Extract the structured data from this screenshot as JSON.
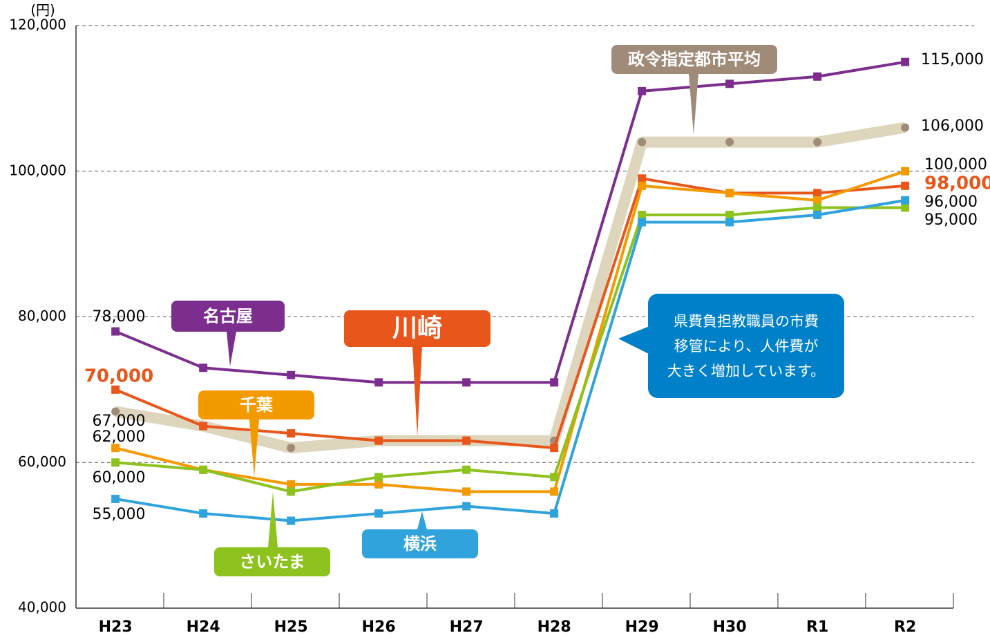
{
  "chart_data": {
    "type": "line",
    "unit_label": "(円)",
    "categories": [
      "H23",
      "H24",
      "H25",
      "H26",
      "H27",
      "H28",
      "H29",
      "H30",
      "R1",
      "R2"
    ],
    "ylim": [
      40000,
      120000
    ],
    "yticks": [
      {
        "value": 40000,
        "label": "40,000"
      },
      {
        "value": 60000,
        "label": "60,000"
      },
      {
        "value": 80000,
        "label": "80,000"
      },
      {
        "value": 100000,
        "label": "100,000"
      },
      {
        "value": 120000,
        "label": "120,000"
      }
    ],
    "grid": true,
    "series": [
      {
        "name": "政令指定都市平均",
        "color": "#ddd5bc",
        "values": [
          67000,
          65000,
          62000,
          63000,
          63000,
          63000,
          104000,
          104000,
          104000,
          106000
        ],
        "value_labels": [
          "67,000",
          null,
          null,
          null,
          null,
          null,
          null,
          null,
          null,
          "106,000"
        ]
      },
      {
        "name": "名古屋",
        "color": "#7b2e8e",
        "values": [
          78000,
          73000,
          72000,
          71000,
          71000,
          71000,
          111000,
          112000,
          113000,
          115000
        ],
        "value_labels": [
          "78,000",
          null,
          null,
          null,
          null,
          null,
          null,
          null,
          null,
          "115,000"
        ]
      },
      {
        "name": "川崎",
        "color": "#e8561b",
        "values": [
          70000,
          65000,
          64000,
          63000,
          63000,
          62000,
          99000,
          97000,
          97000,
          98000
        ],
        "value_labels": [
          "70,000",
          null,
          null,
          null,
          null,
          null,
          null,
          null,
          null,
          "98,000"
        ]
      },
      {
        "name": "千葉",
        "color": "#f39a00",
        "values": [
          62000,
          59000,
          57000,
          57000,
          56000,
          56000,
          98000,
          97000,
          96000,
          100000
        ],
        "value_labels": [
          "62,000",
          null,
          null,
          null,
          null,
          null,
          null,
          null,
          null,
          "100,000"
        ]
      },
      {
        "name": "さいたま",
        "color": "#8dc21f",
        "values": [
          60000,
          59000,
          56000,
          58000,
          59000,
          58000,
          94000,
          94000,
          95000,
          95000
        ],
        "value_labels": [
          "60,000",
          null,
          null,
          null,
          null,
          null,
          null,
          null,
          null,
          "95,000"
        ]
      },
      {
        "name": "横浜",
        "color": "#30a3dd",
        "values": [
          55000,
          53000,
          52000,
          53000,
          54000,
          53000,
          93000,
          93000,
          94000,
          96000
        ],
        "value_labels": [
          "55,000",
          null,
          null,
          null,
          null,
          null,
          null,
          null,
          null,
          "96,000"
        ]
      }
    ],
    "annotation": {
      "lines": [
        "県費負担教職員の市費",
        "移管により、人件費が",
        "大きく増加しています。"
      ],
      "color": "#0080c8"
    }
  }
}
